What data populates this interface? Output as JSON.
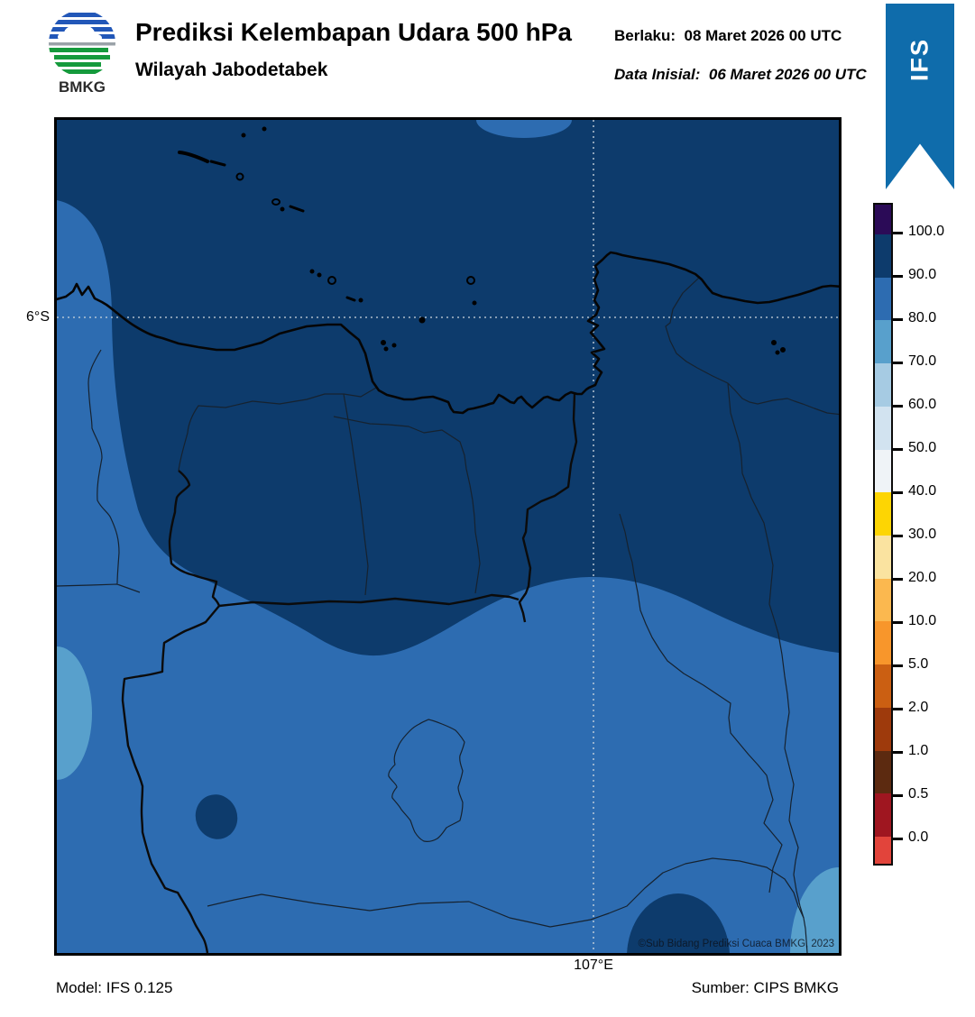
{
  "header": {
    "logo_text": "BMKG",
    "title": "Prediksi Kelembapan Udara 500 hPa",
    "subtitle": "Wilayah Jabodetabek",
    "berlaku_label": "Berlaku:",
    "berlaku_value": "08 Maret 2026 00 UTC",
    "inisial_label": "Data Inisial:",
    "inisial_value": "06 Maret 2026 00 UTC",
    "ribbon_label": "IFS",
    "ribbon_color": "#0f6cab"
  },
  "map": {
    "lat_label": "6°S",
    "lon_label": "107°E",
    "copyright": "©Sub Bidang Prediksi Cuaca BMKG, 2023",
    "region_colors": {
      "band_90_100": "#0d3b6c",
      "band_80_90": "#2d6cb1",
      "band_70_80": "#58a0cc"
    }
  },
  "colorbar": {
    "tick_labels": [
      "100.0",
      "90.0",
      "80.0",
      "70.0",
      "60.0",
      "50.0",
      "40.0",
      "30.0",
      "20.0",
      "10.0",
      "5.0",
      "2.0",
      "1.0",
      "0.5",
      "0.0"
    ],
    "segment_colors_top_to_bottom": [
      "#2b0b57",
      "#0d3b6c",
      "#2d6cb1",
      "#58a0cc",
      "#a6cbe3",
      "#d2e3f0",
      "#eff3f7",
      "#fdd503",
      "#fae3a0",
      "#fbb84f",
      "#f8962b",
      "#cb5f12",
      "#9e3a0c",
      "#5c2a10",
      "#9f1620",
      "#e2443b"
    ]
  },
  "footer": {
    "model": "Model: IFS 0.125",
    "source": "Sumber: CIPS BMKG"
  }
}
